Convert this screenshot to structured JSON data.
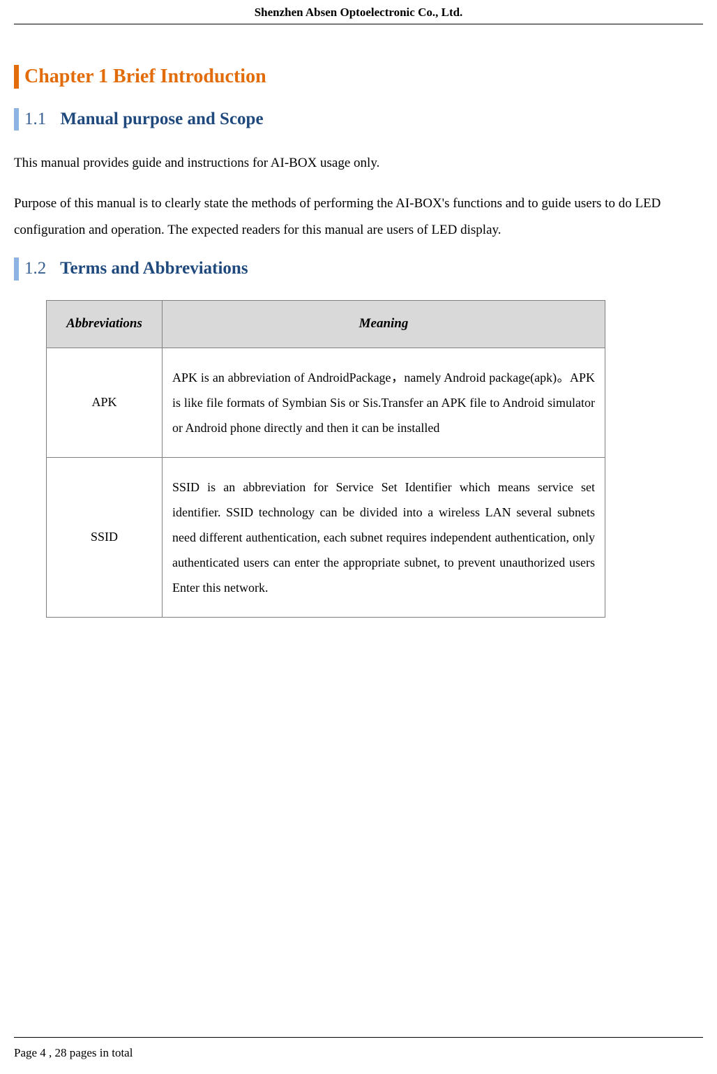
{
  "header": {
    "company_name": "Shenzhen Absen Optoelectronic Co., Ltd."
  },
  "chapter": {
    "title": "Chapter 1 Brief Introduction",
    "title_color": "#e36c0a",
    "border_color": "#e36c0a",
    "fontsize": 28
  },
  "section_1_1": {
    "number": "1.1",
    "title": "Manual purpose and Scope",
    "title_color": "#1f497d",
    "number_color": "#365f91",
    "border_color": "#8db3e2",
    "fontsize": 25,
    "paragraph1": "This manual provides guide and instructions for AI-BOX usage only.",
    "paragraph2": "Purpose of this manual is to clearly state the methods of performing the AI-BOX's functions and to guide users to do LED configuration and operation. The expected readers for this manual are users of LED display."
  },
  "section_1_2": {
    "number": "1.2",
    "title": "Terms and Abbreviations",
    "title_color": "#1f497d",
    "number_color": "#365f91",
    "border_color": "#8db3e2",
    "fontsize": 25
  },
  "table": {
    "header_bg": "#d9d9d9",
    "border_color": "#808080",
    "col_abbrev_width": 166,
    "total_width": 802,
    "columns": [
      "Abbreviations",
      "Meaning"
    ],
    "rows": [
      {
        "abbrev": "APK",
        "meaning": "APK is an abbreviation of AndroidPackage，namely Android package(apk)。APK is like   file formats of Symbian Sis or Sis.Transfer an APK file to Android simulator or Android phone directly and then it can be installed"
      },
      {
        "abbrev": "SSID",
        "meaning": "SSID is an abbreviation for Service Set Identifier which means service set identifier. SSID technology can be divided into a wireless LAN several subnets need different authentication, each subnet requires independent authentication, only authenticated users can enter the appropriate subnet, to prevent unauthorized users Enter this network."
      }
    ]
  },
  "footer": {
    "page_text": "Page 4 , 28 pages in total"
  },
  "colors": {
    "text": "#000000",
    "background": "#ffffff"
  },
  "typography": {
    "body_fontsize": 19,
    "body_lineheight": 2.0,
    "font_family": "Times New Roman"
  }
}
